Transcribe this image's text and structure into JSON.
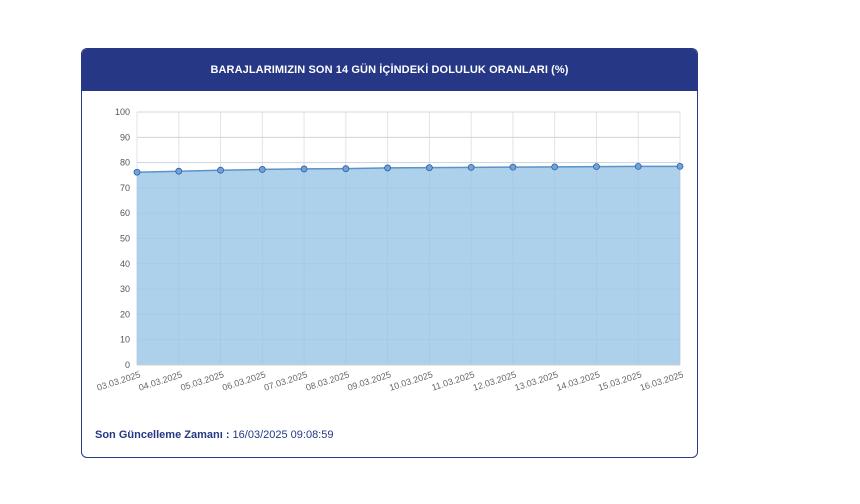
{
  "header": {
    "title": "BARAJLARIMIZIN SON 14 GÜN İÇİNDEKİ DOLULUK ORANLARI (%)"
  },
  "chart_data": {
    "type": "area",
    "title": "BARAJLARIMIZIN SON 14 GÜN İÇİNDEKİ DOLULUK ORANLARI (%)",
    "categories": [
      "03.03.2025",
      "04.03.2025",
      "05.03.2025",
      "06.03.2025",
      "07.03.2025",
      "08.03.2025",
      "09.03.2025",
      "10.03.2025",
      "11.03.2025",
      "12.03.2025",
      "13.03.2025",
      "14.03.2025",
      "15.03.2025",
      "16.03.2025"
    ],
    "series": [
      {
        "values": [
          76.2,
          76.6,
          77.0,
          77.3,
          77.5,
          77.6,
          77.9,
          78.0,
          78.1,
          78.2,
          78.3,
          78.4,
          78.5,
          78.5
        ]
      }
    ],
    "yticks": [
      0,
      10,
      20,
      30,
      40,
      50,
      60,
      70,
      80,
      90,
      100
    ],
    "ylim": [
      0,
      100
    ],
    "grid": true,
    "fill_color": "#a9cdea",
    "line_color": "#5b93cc",
    "point_color": "#6fa3d9",
    "point_stroke": "#2f5f9e"
  },
  "footer": {
    "label": "Son Güncelleme Zamanı :",
    "value": "16/03/2025 09:08:59"
  }
}
